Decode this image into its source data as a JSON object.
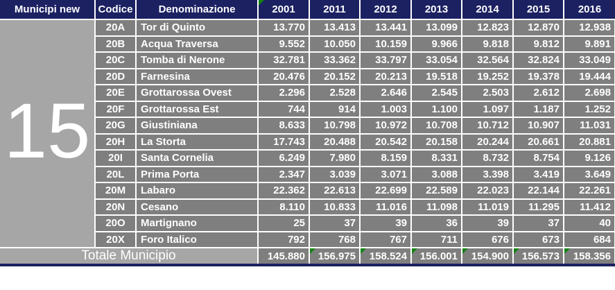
{
  "table": {
    "municipio_number": "15",
    "header": {
      "municipi": "Municipi new",
      "codice": "Codice",
      "denominazione": "Denominazione",
      "years": [
        "2001",
        "2011",
        "2012",
        "2013",
        "2014",
        "2015",
        "2016"
      ]
    },
    "rows": [
      {
        "codice": "20A",
        "denominazione": "Tor di Quinto",
        "values": [
          "13.770",
          "13.413",
          "13.441",
          "13.099",
          "12.823",
          "12.870",
          "12.938"
        ]
      },
      {
        "codice": "20B",
        "denominazione": "Acqua Traversa",
        "values": [
          "9.552",
          "10.050",
          "10.159",
          "9.966",
          "9.818",
          "9.812",
          "9.891"
        ]
      },
      {
        "codice": "20C",
        "denominazione": "Tomba di Nerone",
        "values": [
          "32.781",
          "33.362",
          "33.797",
          "33.054",
          "32.564",
          "32.824",
          "33.049"
        ]
      },
      {
        "codice": "20D",
        "denominazione": "Farnesina",
        "values": [
          "20.476",
          "20.152",
          "20.213",
          "19.518",
          "19.252",
          "19.378",
          "19.444"
        ]
      },
      {
        "codice": "20E",
        "denominazione": "Grottarossa Ovest",
        "values": [
          "2.296",
          "2.528",
          "2.646",
          "2.545",
          "2.503",
          "2.612",
          "2.698"
        ]
      },
      {
        "codice": "20F",
        "denominazione": "Grottarossa Est",
        "values": [
          "744",
          "914",
          "1.003",
          "1.100",
          "1.097",
          "1.187",
          "1.252"
        ]
      },
      {
        "codice": "20G",
        "denominazione": "Giustiniana",
        "values": [
          "8.633",
          "10.798",
          "10.972",
          "10.708",
          "10.712",
          "10.907",
          "11.031"
        ]
      },
      {
        "codice": "20H",
        "denominazione": "La Storta",
        "values": [
          "17.743",
          "20.488",
          "20.542",
          "20.158",
          "20.244",
          "20.661",
          "20.881"
        ]
      },
      {
        "codice": "20I",
        "denominazione": "Santa Cornelia",
        "values": [
          "6.249",
          "7.980",
          "8.159",
          "8.331",
          "8.732",
          "8.754",
          "9.126"
        ]
      },
      {
        "codice": "20L",
        "denominazione": "Prima Porta",
        "values": [
          "2.347",
          "3.039",
          "3.071",
          "3.088",
          "3.398",
          "3.419",
          "3.649"
        ]
      },
      {
        "codice": "20M",
        "denominazione": "Labaro",
        "values": [
          "22.362",
          "22.613",
          "22.699",
          "22.589",
          "22.023",
          "22.144",
          "22.261"
        ]
      },
      {
        "codice": "20N",
        "denominazione": "Cesano",
        "values": [
          "8.110",
          "10.833",
          "11.016",
          "11.098",
          "11.019",
          "11.295",
          "11.412"
        ]
      },
      {
        "codice": "20O",
        "denominazione": "Martignano",
        "values": [
          "25",
          "37",
          "39",
          "36",
          "39",
          "37",
          "40"
        ]
      },
      {
        "codice": "20X",
        "denominazione": "Foro Italico",
        "values": [
          "792",
          "768",
          "767",
          "711",
          "676",
          "673",
          "684"
        ]
      }
    ],
    "total": {
      "label": "Totale Municipio",
      "values": [
        "145.880",
        "156.975",
        "158.524",
        "156.001",
        "154.900",
        "156.573",
        "158.356"
      ]
    }
  },
  "icons": {
    "error_indicator": "green-corner-triangle"
  },
  "colors": {
    "header_navy": "#1b2161",
    "cell_gray": "#7f7f7f",
    "light_gray": "#a6a6a6",
    "grid_white": "#ffffff",
    "error_green": "#128212",
    "text_white": "#ffffff"
  }
}
